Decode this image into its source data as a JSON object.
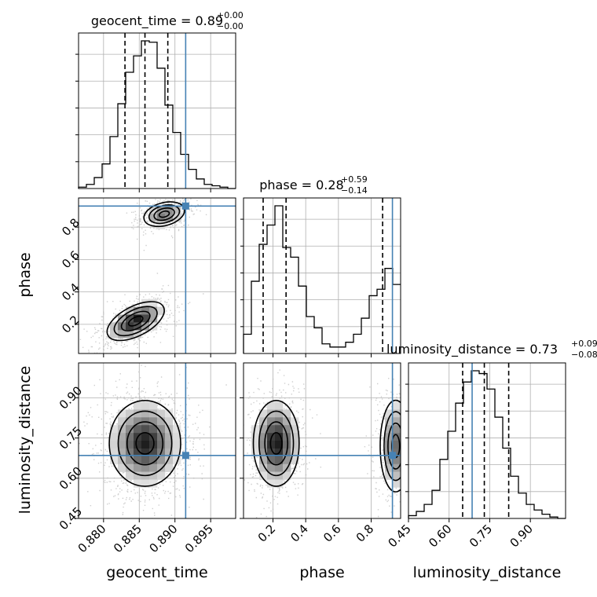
{
  "chart_data": {
    "type": "corner",
    "parameters": [
      "geocent_time",
      "phase",
      "luminosity_distance"
    ],
    "injection": {
      "color": "#4682b4",
      "geocent_time": 0.8915,
      "phase": 0.93,
      "luminosity_distance": 0.685
    },
    "titles": {
      "geocent_time": {
        "prefix": "geocent_time = 0.89",
        "plus": "+0.00",
        "minus": "−0.00"
      },
      "phase": {
        "prefix": "phase = 0.28",
        "plus": "+0.59",
        "minus": "−0.14"
      },
      "luminosity_distance": {
        "prefix": "luminosity_distance = 0.73",
        "plus": "+0.09",
        "minus": "−0.08"
      }
    },
    "axes": {
      "geocent_time": {
        "label": "geocent_time",
        "range": [
          0.8765,
          0.8985
        ],
        "ticks": [
          {
            "v": 0.88,
            "label": "0.880"
          },
          {
            "v": 0.885,
            "label": "0.885"
          },
          {
            "v": 0.89,
            "label": "0.890"
          },
          {
            "v": 0.895,
            "label": "0.895"
          }
        ]
      },
      "phase": {
        "label": "phase",
        "range": [
          0.02,
          0.98
        ],
        "ticks": [
          {
            "v": 0.2,
            "label": "0.2"
          },
          {
            "v": 0.4,
            "label": "0.4"
          },
          {
            "v": 0.6,
            "label": "0.6"
          },
          {
            "v": 0.8,
            "label": "0.8"
          }
        ]
      },
      "luminosity_distance": {
        "label": "luminosity_distance",
        "range": [
          0.45,
          1.03
        ],
        "ticks": [
          {
            "v": 0.45,
            "label": "0.45"
          },
          {
            "v": 0.6,
            "label": "0.60"
          },
          {
            "v": 0.75,
            "label": "0.75"
          },
          {
            "v": 0.9,
            "label": "0.90"
          }
        ]
      }
    },
    "marginals": {
      "geocent_time": {
        "bins": [
          0.8765,
          0.8776,
          0.8787,
          0.8798,
          0.8809,
          0.882,
          0.8831,
          0.8842,
          0.8853,
          0.8864,
          0.8875,
          0.8886,
          0.8897,
          0.8908,
          0.8919,
          0.893,
          0.8941,
          0.8952,
          0.8963,
          0.8974,
          0.8985
        ],
        "counts": [
          1,
          3,
          8,
          18,
          38,
          62,
          85,
          97,
          108,
          107,
          88,
          61,
          41,
          25,
          14,
          7,
          3,
          2,
          1,
          0
        ],
        "quantiles": [
          0.883,
          0.8858,
          0.889
        ]
      },
      "phase": {
        "bins": [
          0.02,
          0.068,
          0.116,
          0.164,
          0.212,
          0.26,
          0.308,
          0.356,
          0.404,
          0.452,
          0.5,
          0.548,
          0.596,
          0.644,
          0.692,
          0.74,
          0.788,
          0.836,
          0.884,
          0.932,
          0.98
        ],
        "counts": [
          12,
          45,
          68,
          80,
          92,
          66,
          60,
          42,
          23,
          16,
          6,
          4,
          4,
          7,
          12,
          22,
          36,
          40,
          53,
          43
        ],
        "quantiles": [
          0.14,
          0.28,
          0.87
        ]
      },
      "luminosity_distance": {
        "bins": [
          0.45,
          0.479,
          0.508,
          0.537,
          0.566,
          0.595,
          0.624,
          0.653,
          0.682,
          0.711,
          0.74,
          0.769,
          0.798,
          0.827,
          0.856,
          0.885,
          0.914,
          0.943,
          0.972,
          1.001,
          1.03
        ],
        "counts": [
          2,
          5,
          10,
          20,
          42,
          62,
          82,
          97,
          105,
          103,
          92,
          72,
          50,
          30,
          18,
          10,
          6,
          3,
          1,
          0
        ],
        "quantiles": [
          0.65,
          0.73,
          0.82
        ]
      }
    },
    "scatter_2d": {
      "phase_vs_geocent_time": {
        "x": "geocent_time",
        "y": "phase",
        "modes": [
          {
            "x": 0.8845,
            "y": 0.22,
            "sx": 0.002,
            "sy": 0.06,
            "rho": 0.55,
            "weight": 0.6
          },
          {
            "x": 0.8885,
            "y": 0.88,
            "sx": 0.0015,
            "sy": 0.04,
            "rho": 0.3,
            "weight": 0.4
          }
        ]
      },
      "luminosity_distance_vs_geocent_time": {
        "x": "geocent_time",
        "y": "luminosity_distance",
        "modes": [
          {
            "x": 0.8858,
            "y": 0.73,
            "sx": 0.0025,
            "sy": 0.08,
            "rho": 0.0,
            "weight": 1.0
          }
        ]
      },
      "luminosity_distance_vs_phase": {
        "x": "phase",
        "y": "luminosity_distance",
        "modes": [
          {
            "x": 0.22,
            "y": 0.73,
            "sx": 0.07,
            "sy": 0.08,
            "rho": 0.0,
            "weight": 0.6
          },
          {
            "x": 0.95,
            "y": 0.72,
            "sx": 0.05,
            "sy": 0.09,
            "rho": 0.0,
            "weight": 0.4
          }
        ]
      }
    }
  }
}
